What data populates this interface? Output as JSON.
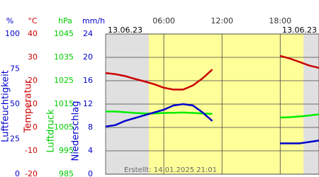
{
  "chart_data": {
    "type": "line",
    "date_left": "13.06.23",
    "date_right": "13.06.23",
    "footer": "Erstellt: 14.01.2025 21:01",
    "xlim": [
      0,
      22
    ],
    "xticks": [
      {
        "value": 6,
        "label": "06:00"
      },
      {
        "value": 12,
        "label": "12:00"
      },
      {
        "value": 18,
        "label": "18:00"
      }
    ],
    "daylight": [
      4.45,
      20.4
    ],
    "axes": [
      {
        "unit": "%",
        "label": "Luftfeuchtigkeit",
        "color": "#0000cc",
        "ylim": [
          0,
          100
        ],
        "yticks": [
          0,
          25,
          50,
          75,
          100
        ]
      },
      {
        "unit": "°C",
        "label": "Temperatur",
        "color": "#cc0000",
        "ylim": [
          -20,
          40
        ],
        "yticks": [
          -20,
          -10,
          0,
          10,
          20,
          30,
          40
        ]
      },
      {
        "unit": "hPa",
        "label": "Luftdruck",
        "color": "#00cc00",
        "ylim": [
          985,
          1045
        ],
        "yticks": [
          985,
          995,
          1005,
          1015,
          1025,
          1035,
          1045
        ]
      },
      {
        "unit": "mm/h",
        "label": "Niederschlag",
        "color": "#0000cc",
        "ylim": [
          0,
          24
        ],
        "yticks": [
          0,
          4,
          8,
          12,
          16,
          20,
          24
        ]
      }
    ],
    "x": [
      0,
      1,
      2,
      3,
      4,
      5,
      6,
      7,
      8,
      9,
      10,
      11,
      12,
      13,
      14,
      15,
      16,
      17,
      18,
      19,
      20,
      21,
      22
    ],
    "series": [
      {
        "color": "#cc0000",
        "axis": 1,
        "values": [
          23.3,
          22.8,
          22,
          20.8,
          19.7,
          18.5,
          17,
          16.2,
          16.2,
          18,
          21,
          24.8,
          null,
          null,
          null,
          null,
          null,
          null,
          30.6,
          29.5,
          28,
          26.5,
          25.5
        ]
      },
      {
        "color": "#00ee00",
        "axis": 2,
        "values": [
          1011.8,
          1011.8,
          1011.5,
          1011.2,
          1011,
          1011,
          1011.2,
          1011.3,
          1011.4,
          1011.2,
          1011,
          1010.8,
          null,
          null,
          null,
          null,
          null,
          null,
          1009.2,
          1009.4,
          1009.7,
          1010.1,
          1010.6
        ]
      },
      {
        "color": "#0000cc",
        "axis": 0,
        "values": [
          34,
          35,
          38,
          40,
          42,
          44,
          46,
          49,
          50,
          49,
          44,
          38,
          null,
          null,
          null,
          null,
          null,
          null,
          22,
          22,
          22,
          23,
          24
        ]
      }
    ]
  }
}
